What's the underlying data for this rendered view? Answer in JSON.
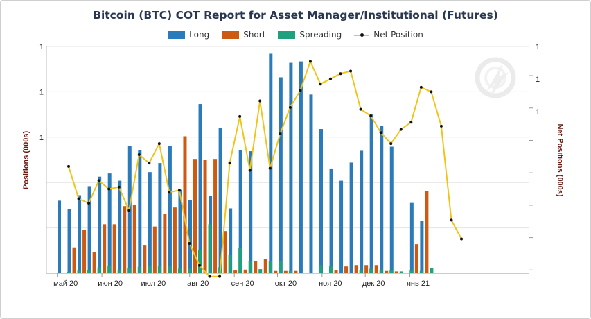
{
  "chart_data": {
    "type": "bar",
    "title": "Bitcoin (BTC) COT Report for Asset Manager/Institutional (Futures)",
    "ylabel": "Positions (000s)",
    "y2label": "Net Positions (000s)",
    "left_ticks": [
      "1",
      "1",
      "1"
    ],
    "right_ticks": [
      "1",
      "1",
      "1"
    ],
    "x_ticks": [
      "май 20",
      "июн 20",
      "июл 20",
      "авг 20",
      "сен 20",
      "окт 20",
      "ноя 20",
      "дек 20",
      "янв 21"
    ],
    "left_ylim": [
      0,
      5
    ],
    "right_ylim": [
      -2.05,
      1.45
    ],
    "legend_position": "top-center",
    "grid": true,
    "colors": {
      "long": "#2b7bba",
      "short": "#cc5a12",
      "spreading": "#1fa07e",
      "net": "#f0c419",
      "net_marker": "#111111",
      "title": "#2a3750",
      "axis_title": "#6b1a12"
    },
    "series": [
      {
        "name": "Long",
        "values": [
          1.6,
          1.42,
          1.72,
          1.92,
          2.13,
          2.2,
          2.04,
          2.8,
          2.72,
          2.23,
          2.43,
          2.8,
          1.84,
          1.62,
          3.73,
          1.71,
          3.2,
          1.43,
          2.72,
          2.69,
          4.84,
          4.32,
          4.64,
          4.67,
          3.94,
          3.18,
          2.31,
          2.04,
          2.44,
          2.7,
          3.5,
          3.25,
          2.79,
          1.55,
          1.15
        ],
        "x": [
          "2020-05-05",
          "2020-05-12",
          "2020-05-19",
          "2020-05-26",
          "2020-06-02",
          "2020-06-09",
          "2020-06-16",
          "2020-06-23",
          "2020-06-30",
          "2020-07-07",
          "2020-07-14",
          "2020-07-21",
          "2020-07-28",
          "2020-08-04",
          "2020-08-11",
          "2020-08-18",
          "2020-08-25",
          "2020-09-01",
          "2020-09-08",
          "2020-09-15",
          "2020-09-29",
          "2020-10-06",
          "2020-10-13",
          "2020-10-20",
          "2020-10-27",
          "2020-11-03",
          "2020-11-10",
          "2020-11-17",
          "2020-11-24",
          "2020-12-01",
          "2020-12-08",
          "2020-12-15",
          "2020-12-22",
          "2021-01-05",
          "2021-01-12"
        ]
      },
      {
        "name": "Short",
        "values": [
          0.57,
          0.96,
          0.47,
          1.08,
          1.08,
          1.48,
          1.5,
          0.61,
          1.03,
          1.3,
          1.45,
          3.02,
          2.52,
          2.5,
          2.52,
          0.93,
          0.06,
          0.08,
          0.26,
          0.32,
          0.05,
          0.05,
          0.05,
          0.0,
          0.0,
          0.0,
          0.06,
          0.15,
          0.18,
          0.18,
          0.18,
          0.05,
          0.04,
          0.64,
          1.81
        ],
        "x": [
          "2020-05-12",
          "2020-05-19",
          "2020-05-26",
          "2020-06-02",
          "2020-06-09",
          "2020-06-16",
          "2020-06-23",
          "2020-06-30",
          "2020-07-07",
          "2020-07-14",
          "2020-07-21",
          "2020-07-28",
          "2020-08-04",
          "2020-08-11",
          "2020-08-18",
          "2020-08-25",
          "2020-09-01",
          "2020-09-08",
          "2020-09-15",
          "2020-09-22",
          "2020-09-29",
          "2020-10-06",
          "2020-10-13",
          "2020-10-20",
          "2020-10-27",
          "2020-11-03",
          "2020-11-10",
          "2020-11-17",
          "2020-11-24",
          "2020-12-01",
          "2020-12-08",
          "2020-12-15",
          "2020-12-22",
          "2021-01-05",
          "2021-01-12"
        ]
      },
      {
        "name": "Spreading",
        "values": [
          0.03,
          0.06,
          0.07,
          0.13,
          0.16,
          0.08,
          0.12,
          0.14,
          0.16,
          0.15,
          0.15,
          0.1,
          0.1,
          0.52,
          1.08,
          0.13,
          0.41,
          0.56,
          0.26,
          0.09,
          0.26,
          0.27,
          0.05,
          0.0,
          0.0,
          0.18,
          0.15,
          0.0,
          0.0,
          0.06,
          0.1,
          0.08,
          0.06,
          0.04,
          0.06,
          0.05,
          0.11
        ],
        "x": [
          "2020-05-05",
          "2020-05-12",
          "2020-05-19",
          "2020-05-26",
          "2020-06-02",
          "2020-06-09",
          "2020-06-16",
          "2020-06-23",
          "2020-06-30",
          "2020-07-07",
          "2020-07-14",
          "2020-07-21",
          "2020-07-28",
          "2020-08-04",
          "2020-08-11",
          "2020-08-18",
          "2020-08-25",
          "2020-09-01",
          "2020-09-08",
          "2020-09-15",
          "2020-09-22",
          "2020-09-29",
          "2020-10-06",
          "2020-10-13",
          "2020-10-20",
          "2020-10-27",
          "2020-11-03",
          "2020-11-10",
          "2020-11-17",
          "2020-11-24",
          "2020-12-01",
          "2020-12-08",
          "2020-12-15",
          "2020-12-22",
          "2020-12-29",
          "2021-01-05",
          "2021-01-12"
        ]
      },
      {
        "name": "Net Position",
        "values": [
          -0.4,
          -0.9,
          -0.97,
          -0.62,
          -0.75,
          -0.72,
          -1.08,
          -0.22,
          -0.35,
          -0.05,
          -0.8,
          -0.77,
          -1.59,
          -1.93,
          -2.1,
          -2.1,
          -0.35,
          0.37,
          -0.46,
          0.61,
          -0.43,
          0.1,
          0.51,
          0.77,
          1.22,
          0.87,
          0.95,
          1.03,
          1.07,
          0.48,
          0.38,
          0.12,
          -0.05,
          0.17,
          0.28,
          0.82,
          0.75,
          0.22,
          -1.23,
          -1.52
        ],
        "x": [
          "2020-05-05",
          "2020-05-12",
          "2020-05-19",
          "2020-05-26",
          "2020-06-02",
          "2020-06-09",
          "2020-06-16",
          "2020-06-23",
          "2020-06-30",
          "2020-07-07",
          "2020-07-14",
          "2020-07-21",
          "2020-07-28",
          "2020-08-04",
          "2020-08-11",
          "2020-08-18",
          "2020-08-25",
          "2020-09-01",
          "2020-09-08",
          "2020-09-15",
          "2020-09-22",
          "2020-09-29",
          "2020-10-06",
          "2020-10-13",
          "2020-10-20",
          "2020-10-27",
          "2020-11-03",
          "2020-11-10",
          "2020-11-17",
          "2020-11-24",
          "2020-12-01",
          "2020-12-08",
          "2020-12-15",
          "2020-12-22",
          "2020-12-29",
          "2021-01-05",
          "2021-01-12",
          "2021-01-19",
          "2021-01-26",
          "2021-02-02"
        ]
      }
    ]
  },
  "watermark_icon": "logo-watermark-icon"
}
